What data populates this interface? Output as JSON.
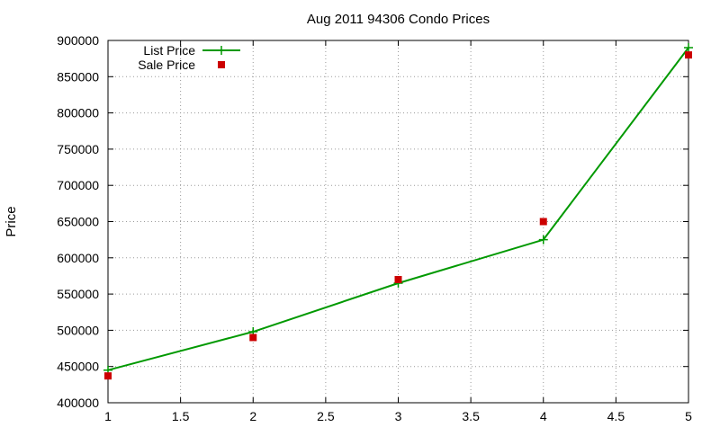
{
  "chart_data": {
    "type": "line",
    "title": "Aug 2011 94306 Condo Prices",
    "xlabel": "",
    "ylabel": "Price",
    "xlim": [
      1,
      5
    ],
    "ylim": [
      400000,
      900000
    ],
    "x_ticks": [
      1,
      1.5,
      2,
      2.5,
      3,
      3.5,
      4,
      4.5,
      5
    ],
    "x_tick_labels": [
      "1",
      "1.5",
      "2",
      "2.5",
      "3",
      "3.5",
      "4",
      "4.5",
      "5"
    ],
    "y_ticks": [
      400000,
      450000,
      500000,
      550000,
      600000,
      650000,
      700000,
      750000,
      800000,
      850000,
      900000
    ],
    "y_tick_labels": [
      "400000",
      "450000",
      "500000",
      "550000",
      "600000",
      "650000",
      "700000",
      "750000",
      "800000",
      "850000",
      "900000"
    ],
    "grid": true,
    "legend_position": "top-left",
    "series": [
      {
        "name": "List Price",
        "style": "line-with-plus-markers",
        "color": "#009900",
        "x": [
          1,
          2,
          3,
          4,
          5
        ],
        "values": [
          445000,
          498000,
          565000,
          625000,
          890000
        ]
      },
      {
        "name": "Sale Price",
        "style": "square-markers",
        "color": "#cc0000",
        "x": [
          1,
          2,
          3,
          4,
          5
        ],
        "values": [
          437000,
          490000,
          570000,
          650000,
          880000
        ]
      }
    ]
  }
}
